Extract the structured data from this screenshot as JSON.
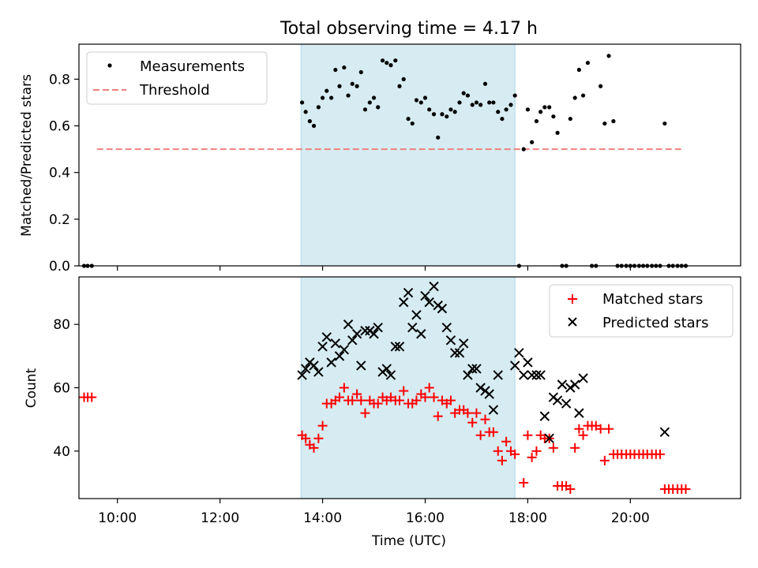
{
  "chart_data": [
    {
      "type": "scatter",
      "title": "Total observing time = 4.17 h",
      "ylabel": "Matched/Predicted stars",
      "xlabel": "",
      "xlim": [
        9.25,
        22.15
      ],
      "ylim": [
        0,
        0.95
      ],
      "x_ticks": [
        10,
        12,
        14,
        16,
        18,
        20
      ],
      "x_tick_labels": [
        "",
        "",
        "",
        "",
        "",
        ""
      ],
      "y_ticks": [
        0.0,
        0.2,
        0.4,
        0.6,
        0.8
      ],
      "y_tick_labels": [
        "0.0",
        "0.2",
        "0.4",
        "0.6",
        "0.8"
      ],
      "grid": false,
      "legend": {
        "placement": "upper-left",
        "entries": [
          "Measurements",
          "Threshold"
        ]
      },
      "shaded_span": {
        "x": [
          13.58,
          17.75
        ],
        "color": "#add8e6"
      },
      "threshold": {
        "name": "Threshold",
        "value": 0.5,
        "x": [
          9.6,
          21.05
        ],
        "color": "#f08080",
        "style": "dashed"
      },
      "series": [
        {
          "name": "Measurements",
          "marker": "dot",
          "color": "#000000",
          "points": [
            [
              9.35,
              0.0
            ],
            [
              9.42,
              0.0
            ],
            [
              9.5,
              0.0
            ],
            [
              13.6,
              0.7
            ],
            [
              13.67,
              0.66
            ],
            [
              13.75,
              0.62
            ],
            [
              13.83,
              0.6
            ],
            [
              13.92,
              0.68
            ],
            [
              14.0,
              0.72
            ],
            [
              14.08,
              0.75
            ],
            [
              14.17,
              0.72
            ],
            [
              14.25,
              0.84
            ],
            [
              14.33,
              0.77
            ],
            [
              14.42,
              0.85
            ],
            [
              14.5,
              0.73
            ],
            [
              14.58,
              0.78
            ],
            [
              14.67,
              0.77
            ],
            [
              14.75,
              0.83
            ],
            [
              14.83,
              0.67
            ],
            [
              14.92,
              0.7
            ],
            [
              15.0,
              0.72
            ],
            [
              15.08,
              0.68
            ],
            [
              15.17,
              0.88
            ],
            [
              15.25,
              0.87
            ],
            [
              15.33,
              0.86
            ],
            [
              15.42,
              0.88
            ],
            [
              15.5,
              0.77
            ],
            [
              15.58,
              0.8
            ],
            [
              15.67,
              0.63
            ],
            [
              15.75,
              0.61
            ],
            [
              15.83,
              0.71
            ],
            [
              15.92,
              0.7
            ],
            [
              16.0,
              0.72
            ],
            [
              16.08,
              0.67
            ],
            [
              16.17,
              0.65
            ],
            [
              16.25,
              0.55
            ],
            [
              16.33,
              0.65
            ],
            [
              16.42,
              0.64
            ],
            [
              16.5,
              0.67
            ],
            [
              16.58,
              0.66
            ],
            [
              16.67,
              0.7
            ],
            [
              16.75,
              0.74
            ],
            [
              16.83,
              0.73
            ],
            [
              16.92,
              0.69
            ],
            [
              17.0,
              0.7
            ],
            [
              17.08,
              0.69
            ],
            [
              17.17,
              0.78
            ],
            [
              17.25,
              0.7
            ],
            [
              17.33,
              0.7
            ],
            [
              17.42,
              0.66
            ],
            [
              17.5,
              0.63
            ],
            [
              17.58,
              0.67
            ],
            [
              17.67,
              0.69
            ],
            [
              17.75,
              0.73
            ],
            [
              17.83,
              0.0
            ],
            [
              17.92,
              0.5
            ],
            [
              18.0,
              0.67
            ],
            [
              18.08,
              0.53
            ],
            [
              18.17,
              0.62
            ],
            [
              18.25,
              0.66
            ],
            [
              18.33,
              0.68
            ],
            [
              18.42,
              0.68
            ],
            [
              18.5,
              0.64
            ],
            [
              18.58,
              0.57
            ],
            [
              18.67,
              0.0
            ],
            [
              18.75,
              0.0
            ],
            [
              18.83,
              0.63
            ],
            [
              18.92,
              0.72
            ],
            [
              19.0,
              0.84
            ],
            [
              19.08,
              0.73
            ],
            [
              19.17,
              0.87
            ],
            [
              19.25,
              0.0
            ],
            [
              19.33,
              0.0
            ],
            [
              19.42,
              0.77
            ],
            [
              19.5,
              0.61
            ],
            [
              19.58,
              0.9
            ],
            [
              19.67,
              0.62
            ],
            [
              19.75,
              0.0
            ],
            [
              19.83,
              0.0
            ],
            [
              19.92,
              0.0
            ],
            [
              20.0,
              0.0
            ],
            [
              20.08,
              0.0
            ],
            [
              20.17,
              0.0
            ],
            [
              20.25,
              0.0
            ],
            [
              20.33,
              0.0
            ],
            [
              20.42,
              0.0
            ],
            [
              20.5,
              0.0
            ],
            [
              20.58,
              0.0
            ],
            [
              20.67,
              0.61
            ],
            [
              20.75,
              0.0
            ],
            [
              20.83,
              0.0
            ],
            [
              20.92,
              0.0
            ],
            [
              21.0,
              0.0
            ],
            [
              21.08,
              0.0
            ]
          ]
        }
      ]
    },
    {
      "type": "scatter",
      "title": "",
      "ylabel": "Count",
      "xlabel": "Time (UTC)",
      "xlim": [
        9.25,
        22.15
      ],
      "ylim": [
        25,
        95
      ],
      "x_ticks": [
        10,
        12,
        14,
        16,
        18,
        20
      ],
      "x_tick_labels": [
        "10:00",
        "12:00",
        "14:00",
        "16:00",
        "18:00",
        "20:00"
      ],
      "y_ticks": [
        40,
        60,
        80
      ],
      "y_tick_labels": [
        "40",
        "60",
        "80"
      ],
      "grid": false,
      "legend": {
        "placement": "upper-right",
        "entries": [
          "Matched stars",
          "Predicted stars"
        ]
      },
      "shaded_span": {
        "x": [
          13.58,
          17.75
        ],
        "color": "#add8e6"
      },
      "series": [
        {
          "name": "Matched stars",
          "marker": "plus",
          "color": "#ff0000",
          "points": [
            [
              9.35,
              57
            ],
            [
              9.42,
              57
            ],
            [
              9.5,
              57
            ],
            [
              13.6,
              45
            ],
            [
              13.67,
              44
            ],
            [
              13.75,
              42
            ],
            [
              13.83,
              41
            ],
            [
              13.92,
              44
            ],
            [
              14.0,
              48
            ],
            [
              14.08,
              55
            ],
            [
              14.17,
              55
            ],
            [
              14.25,
              56
            ],
            [
              14.33,
              57
            ],
            [
              14.42,
              60
            ],
            [
              14.5,
              56
            ],
            [
              14.58,
              56
            ],
            [
              14.67,
              58
            ],
            [
              14.75,
              56
            ],
            [
              14.83,
              52
            ],
            [
              14.92,
              56
            ],
            [
              15.0,
              55
            ],
            [
              15.08,
              55
            ],
            [
              15.17,
              57
            ],
            [
              15.25,
              56
            ],
            [
              15.33,
              57
            ],
            [
              15.42,
              56
            ],
            [
              15.5,
              56
            ],
            [
              15.58,
              59
            ],
            [
              15.67,
              55
            ],
            [
              15.75,
              55
            ],
            [
              15.83,
              56
            ],
            [
              15.92,
              58
            ],
            [
              16.0,
              57
            ],
            [
              16.08,
              60
            ],
            [
              16.17,
              57
            ],
            [
              16.25,
              51
            ],
            [
              16.33,
              56
            ],
            [
              16.42,
              55
            ],
            [
              16.5,
              56
            ],
            [
              16.58,
              52
            ],
            [
              16.67,
              53
            ],
            [
              16.75,
              53
            ],
            [
              16.83,
              52
            ],
            [
              16.92,
              49
            ],
            [
              17.0,
              52
            ],
            [
              17.08,
              45
            ],
            [
              17.17,
              50
            ],
            [
              17.25,
              46
            ],
            [
              17.33,
              46
            ],
            [
              17.42,
              40
            ],
            [
              17.5,
              37
            ],
            [
              17.58,
              43
            ],
            [
              17.67,
              40
            ],
            [
              17.75,
              39
            ],
            [
              17.92,
              30
            ],
            [
              18.0,
              45
            ],
            [
              18.08,
              38
            ],
            [
              18.17,
              40
            ],
            [
              18.25,
              45
            ],
            [
              18.33,
              44
            ],
            [
              18.42,
              44
            ],
            [
              18.5,
              41
            ],
            [
              18.58,
              29
            ],
            [
              18.67,
              29
            ],
            [
              18.75,
              29
            ],
            [
              18.83,
              28
            ],
            [
              18.92,
              41
            ],
            [
              19.0,
              47
            ],
            [
              19.08,
              45
            ],
            [
              19.17,
              48
            ],
            [
              19.25,
              48
            ],
            [
              19.33,
              48
            ],
            [
              19.42,
              47
            ],
            [
              19.5,
              37
            ],
            [
              19.58,
              47
            ],
            [
              19.67,
              39
            ],
            [
              19.75,
              39
            ],
            [
              19.83,
              39
            ],
            [
              19.92,
              39
            ],
            [
              20.0,
              39
            ],
            [
              20.08,
              39
            ],
            [
              20.17,
              39
            ],
            [
              20.25,
              39
            ],
            [
              20.33,
              39
            ],
            [
              20.42,
              39
            ],
            [
              20.5,
              39
            ],
            [
              20.58,
              39
            ],
            [
              20.67,
              28
            ],
            [
              20.75,
              28
            ],
            [
              20.83,
              28
            ],
            [
              20.92,
              28
            ],
            [
              21.0,
              28
            ],
            [
              21.08,
              28
            ]
          ]
        },
        {
          "name": "Predicted stars",
          "marker": "x",
          "color": "#000000",
          "points": [
            [
              13.6,
              64
            ],
            [
              13.67,
              66
            ],
            [
              13.75,
              68
            ],
            [
              13.83,
              67
            ],
            [
              13.92,
              65
            ],
            [
              14.0,
              73
            ],
            [
              14.08,
              76
            ],
            [
              14.17,
              68
            ],
            [
              14.25,
              74
            ],
            [
              14.33,
              70
            ],
            [
              14.42,
              72
            ],
            [
              14.5,
              80
            ],
            [
              14.58,
              75
            ],
            [
              14.67,
              77
            ],
            [
              14.75,
              67
            ],
            [
              14.83,
              78
            ],
            [
              14.92,
              78
            ],
            [
              15.0,
              77
            ],
            [
              15.08,
              79
            ],
            [
              15.17,
              65
            ],
            [
              15.25,
              66
            ],
            [
              15.33,
              64
            ],
            [
              15.42,
              73
            ],
            [
              15.5,
              73
            ],
            [
              15.58,
              87
            ],
            [
              15.67,
              90
            ],
            [
              15.75,
              79
            ],
            [
              15.83,
              83
            ],
            [
              15.92,
              77
            ],
            [
              16.0,
              89
            ],
            [
              16.08,
              87
            ],
            [
              16.17,
              92
            ],
            [
              16.25,
              86
            ],
            [
              16.33,
              85
            ],
            [
              16.42,
              79
            ],
            [
              16.5,
              75
            ],
            [
              16.58,
              71
            ],
            [
              16.67,
              71
            ],
            [
              16.75,
              74
            ],
            [
              16.83,
              64
            ],
            [
              16.92,
              66
            ],
            [
              17.0,
              66
            ],
            [
              17.08,
              60
            ],
            [
              17.17,
              59
            ],
            [
              17.25,
              58
            ],
            [
              17.33,
              53
            ],
            [
              17.42,
              64
            ],
            [
              17.75,
              67
            ],
            [
              17.83,
              71
            ],
            [
              17.92,
              64
            ],
            [
              18.0,
              68
            ],
            [
              18.08,
              64
            ],
            [
              18.17,
              64
            ],
            [
              18.25,
              64
            ],
            [
              18.33,
              51
            ],
            [
              18.42,
              44
            ],
            [
              18.5,
              57
            ],
            [
              18.58,
              56
            ],
            [
              18.67,
              61
            ],
            [
              18.75,
              55
            ],
            [
              18.83,
              60
            ],
            [
              18.92,
              61
            ],
            [
              19.0,
              52
            ],
            [
              19.08,
              63
            ],
            [
              20.67,
              46
            ]
          ]
        }
      ]
    }
  ]
}
